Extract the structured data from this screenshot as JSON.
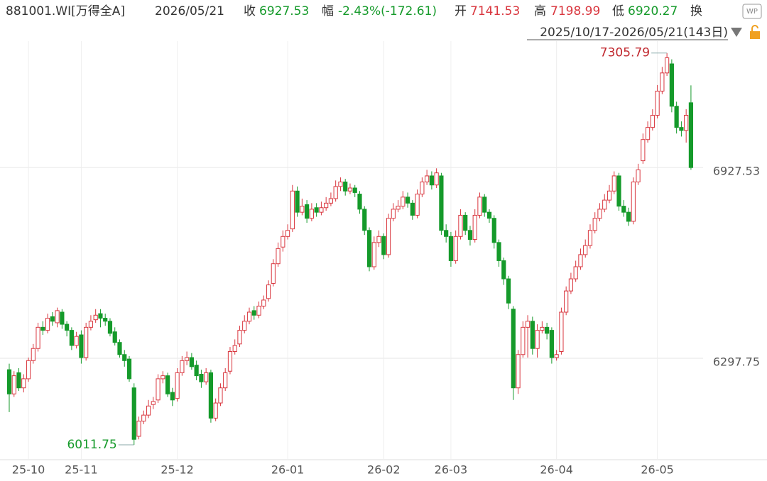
{
  "header": {
    "code": "881001.WI[万得全A]",
    "date": "2026/05/21",
    "close_label": "收",
    "change_label": "幅",
    "change": "-2.43%(-172.61)",
    "open_label": "开",
    "high_label": "高",
    "low_label": "低",
    "turnover_label": "换",
    "range": "2025/10/17-2026/05/21(143日)",
    "icon": "WP"
  },
  "chart_data": {
    "type": "candlestick",
    "categories": [
      null,
      null,
      null,
      null,
      "25-10",
      null,
      null,
      null,
      null,
      null,
      null,
      null,
      null,
      null,
      null,
      "25-11",
      null,
      null,
      null,
      null,
      null,
      null,
      null,
      null,
      null,
      null,
      null,
      null,
      null,
      null,
      null,
      null,
      null,
      null,
      null,
      "25-12",
      null,
      null,
      null,
      null,
      null,
      null,
      null,
      null,
      null,
      null,
      null,
      null,
      null,
      null,
      null,
      null,
      null,
      null,
      null,
      null,
      null,
      null,
      "26-01",
      null,
      null,
      null,
      null,
      null,
      null,
      null,
      null,
      null,
      null,
      null,
      null,
      null,
      null,
      null,
      null,
      null,
      null,
      null,
      "26-02",
      null,
      null,
      null,
      null,
      null,
      null,
      null,
      null,
      null,
      null,
      null,
      null,
      null,
      "26-03",
      null,
      null,
      null,
      null,
      null,
      null,
      null,
      null,
      null,
      null,
      null,
      null,
      null,
      null,
      null,
      null,
      null,
      null,
      null,
      null,
      null,
      "26-04",
      null,
      null,
      null,
      null,
      null,
      null,
      null,
      null,
      null,
      null,
      null,
      null,
      null,
      null,
      null,
      null,
      null,
      null,
      null,
      null,
      "26-05",
      null,
      null,
      null,
      null,
      null,
      null,
      null
    ],
    "open": [
      6260,
      6180,
      6250,
      6200,
      6230,
      6290,
      6330,
      6400,
      6390,
      6435,
      6415,
      6450,
      6410,
      6390,
      6340,
      6375,
      6300,
      6400,
      6425,
      6445,
      6430,
      6420,
      6385,
      6350,
      6310,
      6295,
      6200,
      6040,
      6090,
      6110,
      6145,
      6160,
      6230,
      6240,
      6185,
      6165,
      6250,
      6290,
      6300,
      6275,
      6245,
      6220,
      6250,
      6100,
      6150,
      6200,
      6255,
      6320,
      6345,
      6390,
      6420,
      6455,
      6440,
      6470,
      6495,
      6545,
      6610,
      6665,
      6700,
      6725,
      6850,
      6780,
      6805,
      6760,
      6795,
      6780,
      6795,
      6810,
      6825,
      6865,
      6880,
      6850,
      6860,
      6840,
      6790,
      6720,
      6600,
      6680,
      6700,
      6640,
      6760,
      6790,
      6800,
      6830,
      6810,
      6770,
      6840,
      6880,
      6900,
      6870,
      6900,
      6720,
      6700,
      6620,
      6700,
      6770,
      6720,
      6690,
      6770,
      6830,
      6780,
      6760,
      6680,
      6620,
      6560,
      6460,
      6200,
      6310,
      6400,
      6420,
      6330,
      6390,
      6400,
      6390,
      6300,
      6320,
      6450,
      6520,
      6560,
      6600,
      6640,
      6670,
      6720,
      6760,
      6790,
      6820,
      6850,
      6900,
      6800,
      6780,
      6750,
      6880,
      6950,
      7020,
      7060,
      7100,
      7180,
      7240,
      7270,
      7130,
      7060,
      7050,
      7141.53
    ],
    "high": [
      6280,
      6255,
      6265,
      6245,
      6300,
      6345,
      6415,
      6420,
      6445,
      6450,
      6465,
      6460,
      6420,
      6400,
      6385,
      6390,
      6415,
      6440,
      6460,
      6460,
      6445,
      6430,
      6400,
      6360,
      6325,
      6305,
      6215,
      6105,
      6125,
      6160,
      6170,
      6245,
      6255,
      6250,
      6200,
      6265,
      6305,
      6320,
      6315,
      6290,
      6260,
      6265,
      6260,
      6165,
      6215,
      6265,
      6335,
      6360,
      6405,
      6440,
      6465,
      6470,
      6485,
      6505,
      6555,
      6625,
      6680,
      6720,
      6740,
      6870,
      6865,
      6825,
      6820,
      6810,
      6810,
      6815,
      6830,
      6845,
      6885,
      6895,
      6890,
      6875,
      6870,
      6850,
      6800,
      6730,
      6700,
      6720,
      6710,
      6775,
      6810,
      6820,
      6850,
      6845,
      6820,
      6855,
      6895,
      6920,
      6915,
      6925,
      6910,
      6740,
      6715,
      6720,
      6790,
      6780,
      6735,
      6790,
      6845,
      6840,
      6790,
      6770,
      6690,
      6630,
      6570,
      6470,
      6325,
      6420,
      6440,
      6435,
      6410,
      6420,
      6415,
      6400,
      6325,
      6465,
      6535,
      6580,
      6620,
      6660,
      6690,
      6740,
      6780,
      6810,
      6840,
      6870,
      6915,
      6910,
      6820,
      6795,
      6895,
      6940,
      7040,
      7080,
      7120,
      7200,
      7260,
      7305.79,
      7285,
      7145,
      7080,
      7120,
      7198.99
    ],
    "low": [
      6120,
      6170,
      6190,
      6185,
      6220,
      6280,
      6320,
      6375,
      6380,
      6405,
      6400,
      6395,
      6370,
      6325,
      6330,
      6280,
      6290,
      6390,
      6415,
      6400,
      6405,
      6370,
      6340,
      6300,
      6270,
      6220,
      6011.75,
      6030,
      6080,
      6100,
      6130,
      6150,
      6215,
      6170,
      6140,
      6155,
      6240,
      6275,
      6260,
      6225,
      6200,
      6210,
      6085,
      6090,
      6140,
      6190,
      6245,
      6310,
      6335,
      6380,
      6410,
      6425,
      6430,
      6460,
      6485,
      6535,
      6600,
      6650,
      6690,
      6715,
      6765,
      6770,
      6745,
      6750,
      6765,
      6770,
      6785,
      6800,
      6815,
      6850,
      6835,
      6840,
      6830,
      6775,
      6705,
      6585,
      6590,
      6665,
      6625,
      6630,
      6750,
      6780,
      6790,
      6795,
      6755,
      6760,
      6830,
      6870,
      6855,
      6860,
      6705,
      6680,
      6600,
      6610,
      6690,
      6705,
      6670,
      6680,
      6760,
      6765,
      6745,
      6660,
      6600,
      6540,
      6460,
      6160,
      6180,
      6300,
      6300,
      6310,
      6300,
      6380,
      6360,
      6280,
      6290,
      6310,
      6440,
      6510,
      6550,
      6590,
      6630,
      6660,
      6710,
      6750,
      6780,
      6810,
      6840,
      6785,
      6765,
      6735,
      6740,
      6870,
      6940,
      7010,
      7050,
      7090,
      7170,
      7230,
      7110,
      7040,
      7030,
      7010,
      6920.27
    ],
    "close": [
      6180,
      6240,
      6200,
      6230,
      6290,
      6330,
      6400,
      6390,
      6430,
      6420,
      6455,
      6410,
      6390,
      6340,
      6370,
      6300,
      6400,
      6420,
      6440,
      6430,
      6420,
      6380,
      6350,
      6310,
      6290,
      6230,
      6030,
      6090,
      6110,
      6140,
      6155,
      6230,
      6240,
      6180,
      6160,
      6250,
      6290,
      6300,
      6270,
      6240,
      6220,
      6250,
      6100,
      6150,
      6200,
      6250,
      6320,
      6340,
      6390,
      6420,
      6450,
      6440,
      6470,
      6490,
      6540,
      6610,
      6660,
      6700,
      6720,
      6850,
      6780,
      6800,
      6760,
      6790,
      6780,
      6795,
      6810,
      6825,
      6865,
      6880,
      6850,
      6860,
      6845,
      6790,
      6720,
      6600,
      6680,
      6700,
      6640,
      6760,
      6790,
      6800,
      6830,
      6810,
      6770,
      6840,
      6880,
      6900,
      6870,
      6910,
      6720,
      6700,
      6620,
      6700,
      6770,
      6720,
      6690,
      6770,
      6830,
      6780,
      6760,
      6680,
      6620,
      6560,
      6480,
      6200,
      6310,
      6400,
      6420,
      6330,
      6390,
      6400,
      6380,
      6300,
      6310,
      6450,
      6520,
      6560,
      6600,
      6640,
      6670,
      6720,
      6760,
      6790,
      6820,
      6850,
      6900,
      6800,
      6780,
      6750,
      6880,
      6920,
      7020,
      7060,
      7100,
      7180,
      7240,
      7290,
      7130,
      7060,
      7050,
      7100.14,
      6927.53
    ],
    "up_color": "#d9363e",
    "down_color": "#159a2a",
    "ylim": [
      5958,
      7345
    ],
    "yticks": [
      6297.75,
      6927.53
    ],
    "grid": true
  }
}
